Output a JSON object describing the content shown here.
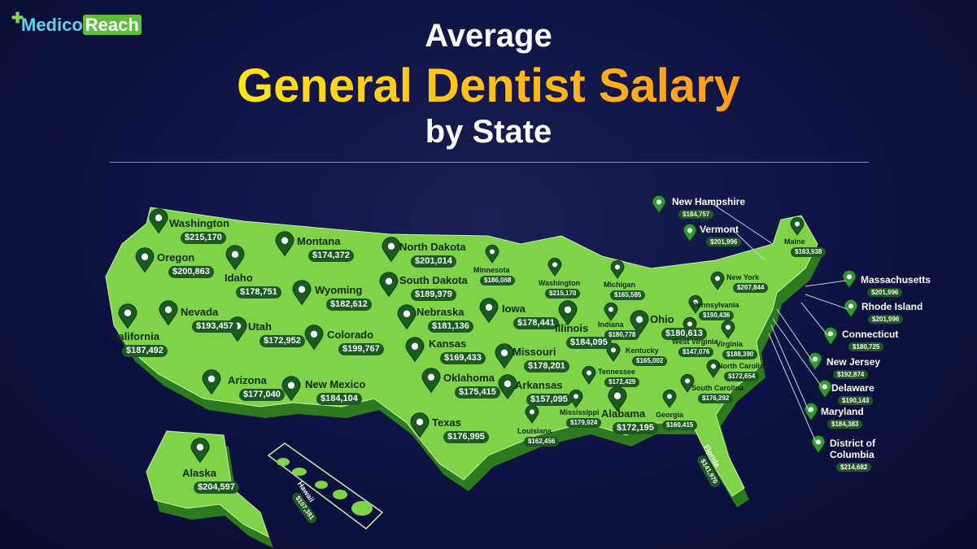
{
  "logo": {
    "part1": "Medico",
    "part2": "Reach"
  },
  "title": {
    "line1": "Average",
    "line2": "General Dentist Salary",
    "line3": "by State"
  },
  "states": [
    {
      "name": "Washington",
      "salary": "$215,170"
    },
    {
      "name": "Oregon",
      "salary": "$200,863"
    },
    {
      "name": "Idaho",
      "salary": "$178,751"
    },
    {
      "name": "Montana",
      "salary": "$174,372"
    },
    {
      "name": "California",
      "salary": "$187,492"
    },
    {
      "name": "Nevada",
      "salary": "$193,457"
    },
    {
      "name": "Utah",
      "salary": "$172,952"
    },
    {
      "name": "Wyoming",
      "salary": "$182,612"
    },
    {
      "name": "Colorado",
      "salary": "$199,767"
    },
    {
      "name": "Arizona",
      "salary": "$177,040"
    },
    {
      "name": "New Mexico",
      "salary": "$184,104"
    },
    {
      "name": "Alaska",
      "salary": "$204,597"
    },
    {
      "name": "Hawaii",
      "salary": "$197,381"
    },
    {
      "name": "North Dakota",
      "salary": "$201,014"
    },
    {
      "name": "South Dakota",
      "salary": "$189,979"
    },
    {
      "name": "Nebraska",
      "salary": "$181,136"
    },
    {
      "name": "Kansas",
      "salary": "$169,433"
    },
    {
      "name": "Oklahoma",
      "salary": "$175,415"
    },
    {
      "name": "Texas",
      "salary": "$176,995"
    },
    {
      "name": "Minnesota",
      "salary": "$186,068"
    },
    {
      "name": "Iowa",
      "salary": "$178,441"
    },
    {
      "name": "Missouri",
      "salary": "$178,201"
    },
    {
      "name": "Arkansas",
      "salary": "$157,095"
    },
    {
      "name": "Louisiana",
      "salary": "$162,456"
    },
    {
      "name": "Washington",
      "salary": "$215,170"
    },
    {
      "name": "Illinois",
      "salary": "$184,095"
    },
    {
      "name": "Michigan",
      "salary": "$165,585"
    },
    {
      "name": "Indiana",
      "salary": "$180,778"
    },
    {
      "name": "Ohio",
      "salary": "$180,613"
    },
    {
      "name": "Kentucky",
      "salary": "$165,002"
    },
    {
      "name": "Tennessee",
      "salary": "$172,429"
    },
    {
      "name": "Mississippi",
      "salary": "$179,924"
    },
    {
      "name": "Alabama",
      "salary": "$172,195"
    },
    {
      "name": "Georgia",
      "salary": "$160,415"
    },
    {
      "name": "Florida",
      "salary": "$141,970"
    },
    {
      "name": "South Carolina",
      "salary": "$176,292"
    },
    {
      "name": "North Carolina",
      "salary": "$172,654"
    },
    {
      "name": "West Virginia",
      "salary": "$147,076"
    },
    {
      "name": "Virginia",
      "salary": "$188,390"
    },
    {
      "name": "Pennsylvania",
      "salary": "$190,436"
    },
    {
      "name": "New York",
      "salary": "$207,844"
    },
    {
      "name": "Maine",
      "salary": "$183,938"
    },
    {
      "name": "New Hampshire",
      "salary": "$184,757"
    },
    {
      "name": "Vermont",
      "salary": "$201,996"
    },
    {
      "name": "Massachusetts",
      "salary": "$201,996"
    },
    {
      "name": "Rhode Island",
      "salary": "$201,996"
    },
    {
      "name": "Connecticut",
      "salary": "$180,725"
    },
    {
      "name": "New Jersey",
      "salary": "$192,874"
    },
    {
      "name": "Delaware",
      "salary": "$190,143"
    },
    {
      "name": "Maryland",
      "salary": "$184,383"
    },
    {
      "name": "District of Columbia",
      "salary": "$214,682"
    }
  ]
}
